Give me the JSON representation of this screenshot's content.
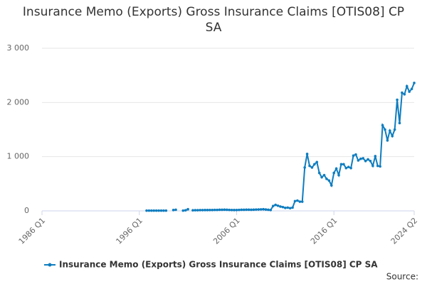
{
  "chart_data": {
    "type": "line",
    "title": "Insurance Memo (Exports) Gross Insurance Claims [OTIS08] CP SA",
    "source": "Source:",
    "categories": [
      "1986 Q1",
      null,
      null,
      null,
      null,
      null,
      null,
      null,
      null,
      null,
      null,
      null,
      null,
      null,
      null,
      null,
      null,
      null,
      null,
      null,
      null,
      null,
      null,
      null,
      null,
      null,
      null,
      null,
      null,
      null,
      null,
      null,
      null,
      null,
      null,
      null,
      null,
      null,
      null,
      null,
      "1996 Q1",
      null,
      null,
      null,
      null,
      null,
      null,
      null,
      null,
      null,
      null,
      null,
      null,
      null,
      null,
      null,
      null,
      null,
      null,
      null,
      null,
      null,
      null,
      null,
      null,
      null,
      null,
      null,
      null,
      null,
      null,
      null,
      null,
      null,
      null,
      null,
      null,
      null,
      null,
      null,
      "2006 Q1",
      null,
      null,
      null,
      null,
      null,
      null,
      null,
      null,
      null,
      null,
      null,
      null,
      null,
      null,
      null,
      null,
      null,
      null,
      null,
      null,
      null,
      null,
      null,
      null,
      null,
      null,
      null,
      null,
      null,
      null,
      null,
      null,
      null,
      null,
      null,
      null,
      null,
      null,
      null,
      "2016 Q1",
      null,
      null,
      null,
      null,
      null,
      null,
      null,
      null,
      null,
      null,
      null,
      null,
      null,
      null,
      null,
      null,
      null,
      null,
      null,
      null,
      null,
      null,
      null,
      null,
      null,
      null,
      null,
      null,
      null,
      null,
      null,
      null,
      "2024 Q2"
    ],
    "series": [
      {
        "name": "Insurance Memo (Exports) Gross Insurance Claims [OTIS08] CP SA",
        "color": "#0f7dbf",
        "values": [
          null,
          null,
          null,
          null,
          null,
          null,
          null,
          null,
          null,
          null,
          null,
          null,
          null,
          null,
          null,
          null,
          null,
          null,
          null,
          null,
          null,
          null,
          null,
          null,
          null,
          null,
          null,
          null,
          null,
          null,
          null,
          null,
          null,
          null,
          null,
          null,
          null,
          null,
          null,
          null,
          null,
          null,
          null,
          5,
          5,
          5,
          5,
          5,
          5,
          5,
          5,
          5,
          null,
          null,
          15,
          20,
          null,
          null,
          5,
          10,
          30,
          null,
          10,
          12,
          12,
          14,
          14,
          15,
          15,
          16,
          16,
          18,
          18,
          20,
          20,
          22,
          20,
          18,
          16,
          15,
          16,
          18,
          20,
          20,
          22,
          22,
          20,
          22,
          24,
          26,
          28,
          30,
          25,
          20,
          15,
          90,
          110,
          95,
          80,
          70,
          55,
          60,
          50,
          60,
          180,
          190,
          170,
          170,
          800,
          1050,
          830,
          800,
          860,
          900,
          700,
          620,
          660,
          590,
          560,
          470,
          700,
          780,
          660,
          860,
          860,
          790,
          810,
          790,
          1020,
          1040,
          930,
          960,
          970,
          920,
          950,
          920,
          830,
          1010,
          830,
          820,
          1580,
          1500,
          1300,
          1480,
          1380,
          1500,
          2050,
          1620,
          2180,
          2150,
          2300,
          2200,
          2250,
          2360
        ]
      }
    ],
    "ylim": [
      0,
      3000
    ],
    "yticks": [
      0,
      {
        "value": 1000,
        "label": "1 000"
      },
      {
        "value": 2000,
        "label": "2 000"
      },
      {
        "value": 3000,
        "label": "3 000"
      }
    ],
    "grid": true
  }
}
